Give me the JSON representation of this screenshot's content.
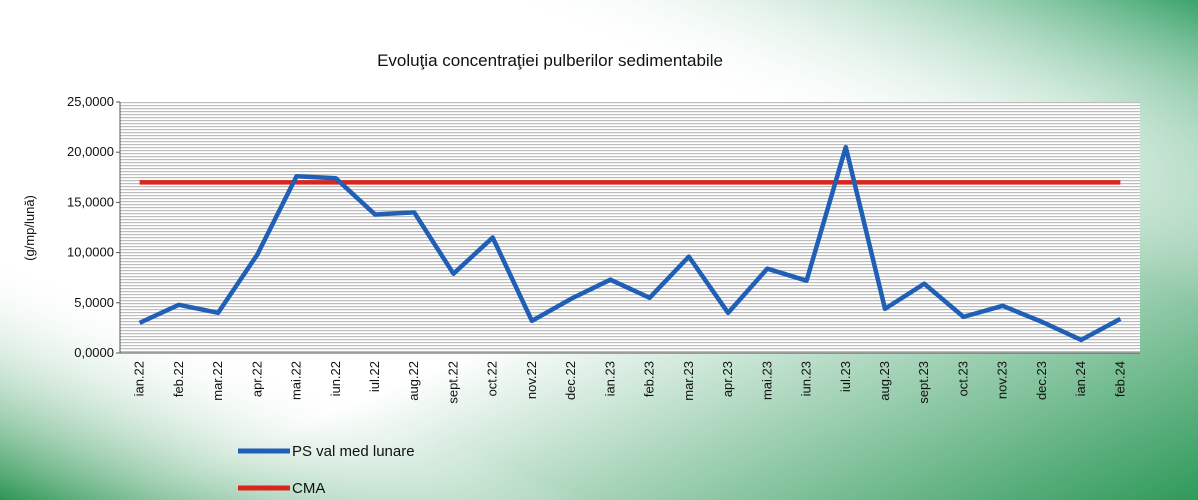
{
  "chart_data": {
    "type": "line",
    "title": "Evoluţia concentraţiei pulberilor sedimentabile",
    "y_label": "(g/mp/lună)",
    "categories": [
      "ian.22",
      "feb.22",
      "mar.22",
      "apr.22",
      "mai.22",
      "iun.22",
      "iul.22",
      "aug.22",
      "sept.22",
      "oct.22",
      "nov.22",
      "dec.22",
      "ian.23",
      "feb.23",
      "mar.23",
      "apr.23",
      "mai.23",
      "iun.23",
      "iul.23",
      "aug.23",
      "sept.23",
      "oct.23",
      "nov.23",
      "dec.23",
      "ian.24",
      "feb.24"
    ],
    "series": [
      {
        "name": "PS val med lunare",
        "color": "#1f5fb5",
        "values": [
          3.0,
          4.8,
          4.0,
          9.8,
          17.6,
          17.4,
          13.8,
          14.0,
          7.9,
          11.5,
          3.2,
          5.4,
          7.3,
          5.5,
          9.6,
          4.0,
          8.4,
          7.2,
          20.5,
          4.4,
          6.9,
          3.6,
          4.7,
          3.1,
          1.3,
          3.4
        ]
      },
      {
        "name": "CMA",
        "color": "#d9261c",
        "values": [
          17,
          17,
          17,
          17,
          17,
          17,
          17,
          17,
          17,
          17,
          17,
          17,
          17,
          17,
          17,
          17,
          17,
          17,
          17,
          17,
          17,
          17,
          17,
          17,
          17,
          17
        ]
      }
    ],
    "ylim": [
      0,
      25
    ],
    "yticks": [
      {
        "value": 0,
        "label": "0,0000"
      },
      {
        "value": 5,
        "label": "5,0000"
      },
      {
        "value": 10,
        "label": "10,0000"
      },
      {
        "value": 15,
        "label": "15,0000"
      },
      {
        "value": 20,
        "label": "20,0000"
      },
      {
        "value": 25,
        "label": "25,0000"
      }
    ]
  }
}
